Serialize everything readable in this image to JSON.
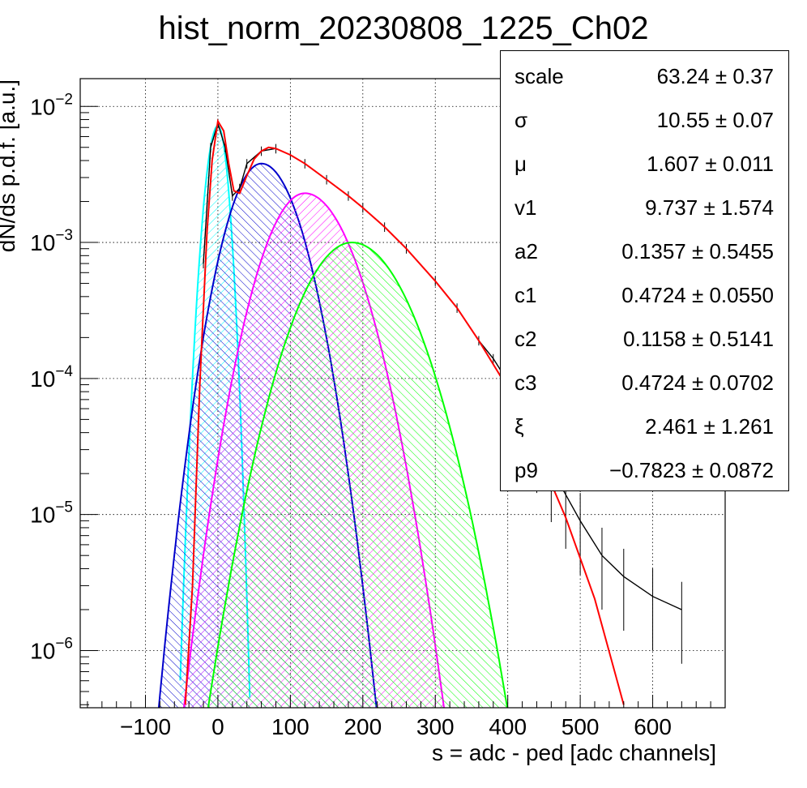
{
  "title": "hist_norm_20230808_1225_Ch02",
  "chart_data": {
    "type": "line",
    "title": "hist_norm_20230808_1225_Ch02",
    "xlabel": "s = adc - ped [adc channels]",
    "ylabel": "dN/ds p.d.f. [a.u.]",
    "xlim": [
      -190,
      700
    ],
    "ylim": [
      3.8e-07,
      0.016
    ],
    "yscale": "log",
    "grid": true,
    "x_ticks": [
      -100,
      0,
      100,
      200,
      300,
      400,
      500,
      600
    ],
    "x_tick_labels": [
      "−100",
      "0",
      "100",
      "200",
      "300",
      "400",
      "500",
      "600"
    ],
    "y_ticks": [
      {
        "value": 0.01,
        "base": "10",
        "exp": "−2"
      },
      {
        "value": 0.001,
        "base": "10",
        "exp": "−3"
      },
      {
        "value": 0.0001,
        "base": "10",
        "exp": "−4"
      },
      {
        "value": 1e-05,
        "base": "10",
        "exp": "−5"
      },
      {
        "value": 1e-06,
        "base": "10",
        "exp": "−6"
      }
    ],
    "components": [
      {
        "color": "#00ffff",
        "hatch": "cyan",
        "mean": 0,
        "peak": 0.0072,
        "left_sigma": 12,
        "right_sigma": 10
      },
      {
        "color": "#0000cc",
        "hatch": "blue",
        "mean": 60,
        "peak": 0.0038,
        "left_sigma": 33,
        "right_sigma": 37
      },
      {
        "color": "#ff00ff",
        "hatch": "magenta",
        "mean": 120,
        "peak": 0.0023,
        "left_sigma": 40,
        "right_sigma": 46
      },
      {
        "color": "#00ff00",
        "hatch": "green",
        "mean": 185,
        "peak": 0.001,
        "left_sigma": 50,
        "right_sigma": 54
      }
    ],
    "series": [
      {
        "type": "histogram",
        "color": "#000000",
        "x": [
          -20,
          -10,
          0,
          10,
          20,
          30,
          40,
          60,
          80,
          100,
          120,
          150,
          180,
          200,
          230,
          260,
          300,
          330,
          360,
          380,
          400,
          420,
          440,
          460,
          480,
          500,
          530,
          560,
          600,
          640
        ],
        "y": [
          0.0007,
          0.005,
          0.0075,
          0.005,
          0.0022,
          0.0025,
          0.0038,
          0.0047,
          0.0049,
          0.0044,
          0.0038,
          0.0029,
          0.0022,
          0.0018,
          0.0013,
          0.0009,
          0.00052,
          0.00033,
          0.00019,
          0.00014,
          9.5e-05,
          6e-05,
          3.6e-05,
          2.2e-05,
          1.4e-05,
          9e-06,
          5e-06,
          3.5e-06,
          2.5e-06,
          2e-06
        ]
      },
      {
        "type": "fit",
        "color": "#ff0000",
        "x": [
          -45,
          -35,
          -25,
          -15,
          -8,
          0,
          8,
          15,
          22,
          30,
          40,
          50,
          60,
          70,
          80,
          100,
          120,
          150,
          180,
          200,
          230,
          260,
          300,
          330,
          360,
          400,
          440,
          480,
          520,
          560
        ],
        "y": [
          4e-07,
          3e-06,
          9e-05,
          0.0012,
          0.004,
          0.0078,
          0.0066,
          0.0038,
          0.0024,
          0.0023,
          0.0031,
          0.0041,
          0.0047,
          0.005,
          0.0049,
          0.0044,
          0.0038,
          0.0029,
          0.0022,
          0.0018,
          0.0013,
          0.0009,
          0.00052,
          0.00033,
          0.00019,
          8.5e-05,
          3e-05,
          9.5e-06,
          2.4e-06,
          4e-07
        ]
      }
    ]
  },
  "stats": [
    {
      "name": "scale",
      "value": "63.24 ± 0.37"
    },
    {
      "name": "σ",
      "value": "10.55 ± 0.07"
    },
    {
      "name": "μ",
      "value": "1.607 ± 0.011"
    },
    {
      "name": "v1",
      "value": "9.737 ± 1.574"
    },
    {
      "name": "a2",
      "value": "0.1357 ± 0.5455"
    },
    {
      "name": "c1",
      "value": "0.4724 ± 0.0550"
    },
    {
      "name": "c2",
      "value": "0.1158 ± 0.5141"
    },
    {
      "name": "c3",
      "value": "0.4724 ± 0.0702"
    },
    {
      "name": "ξ",
      "value": "2.461 ± 1.261"
    },
    {
      "name": "p9",
      "value": "−0.7823 ± 0.0872"
    }
  ]
}
